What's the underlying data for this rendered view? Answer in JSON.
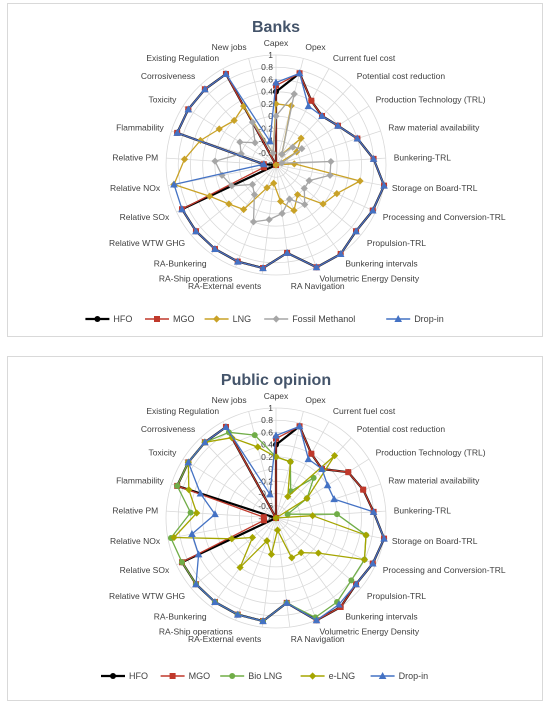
{
  "chart_data": [
    {
      "type": "radar",
      "title": "Banks",
      "rlim": [
        -0.8,
        1
      ],
      "rticks": [
        "-0.8",
        "-0.6",
        "-0.4",
        "-0.2",
        "0",
        "0.2",
        "0.4",
        "0.6",
        "0.8",
        "1"
      ],
      "categories": [
        "Capex",
        "Opex",
        "Current fuel cost",
        "Potential cost reduction",
        "Production Technology (TRL)",
        "Raw material availability",
        "Bunkering-TRL",
        "Storage on Board-TRL",
        "Processing and Conversion-TRL",
        "Propulsion-TRL",
        "Bunkering intervals",
        "Volumetric Energy Density",
        "RA Navigation",
        "RA-External events",
        "RA-Ship operations",
        "RA-Bunkering",
        "Relative WTW GHG",
        "Relative SOx",
        "Relative NOx",
        "Relative PM",
        "Flammability",
        "Toxicity",
        "Corrosiveness",
        "Existing Regulation",
        "New jobs"
      ],
      "legend_position": "bottom",
      "series": [
        {
          "name": "HFO",
          "color": "#000000",
          "marker": "circle",
          "values": [
            0.4,
            0.75,
            0.4,
            0.3,
            0.4,
            0.6,
            0.8,
            1,
            0.95,
            0.9,
            1,
            1,
            0.65,
            0.9,
            0.9,
            0.9,
            0.9,
            0.9,
            -0.8,
            -0.6,
            0.9,
            0.9,
            0.9,
            0.9,
            -0.8
          ]
        },
        {
          "name": "MGO",
          "color": "#c0392b",
          "marker": "square",
          "values": [
            0.5,
            0.75,
            0.4,
            0.3,
            0.4,
            0.6,
            0.8,
            1,
            0.95,
            0.9,
            1,
            1,
            0.65,
            0.9,
            0.9,
            0.9,
            0.9,
            0.9,
            -0.6,
            -0.6,
            0.9,
            0.9,
            0.9,
            0.9,
            -0.8
          ]
        },
        {
          "name": "LNG",
          "color": "#c9a227",
          "marker": "diamond",
          "values": [
            0.2,
            0.2,
            -0.6,
            -0.2,
            -0.4,
            -0.8,
            -0.5,
            0.6,
            0.3,
            0.2,
            -0.2,
            0,
            -0.2,
            -0.5,
            -0.4,
            0.1,
            0.2,
            0.4,
            0.9,
            0.7,
            0.5,
            0.3,
            0.2,
            0.3,
            -0.6
          ]
        },
        {
          "name": "Fossil Methanol",
          "color": "#a6a6a6",
          "marker": "diamond",
          "values": [
            0,
            0.4,
            -0.6,
            -0.4,
            -0.3,
            -0.7,
            0.1,
            0.1,
            -0.2,
            -0.2,
            0,
            -0.2,
            0,
            0.1,
            0.2,
            -0.2,
            -0.3,
            0,
            0.1,
            0.2,
            -0.2,
            -0.1,
            -0.3,
            0,
            -0.6
          ]
        },
        {
          "name": "Drop-in",
          "color": "#4472c4",
          "marker": "triangle",
          "values": [
            0.55,
            0.75,
            0.3,
            0.3,
            0.4,
            0.6,
            0.8,
            1,
            0.95,
            0.9,
            1,
            1,
            0.65,
            0.9,
            0.9,
            0.9,
            0.9,
            0.9,
            0.9,
            -0.6,
            0.9,
            0.9,
            0.9,
            0.9,
            -0.4
          ]
        }
      ]
    },
    {
      "type": "radar",
      "title": "Public opinion",
      "rlim": [
        -0.8,
        1
      ],
      "rticks": [
        "-0.8",
        "-0.6",
        "-0.4",
        "-0.2",
        "0",
        "0.2",
        "0.4",
        "0.6",
        "0.8",
        "1"
      ],
      "categories": [
        "Capex",
        "Opex",
        "Current fuel cost",
        "Potential cost reduction",
        "Production Technology (TRL)",
        "Raw material availability",
        "Bunkering-TRL",
        "Storage on Board-TRL",
        "Processing and Conversion-TRL",
        "Propulsion-TRL",
        "Bunkering intervals",
        "Volumetric Energy Density",
        "RA Navigation",
        "RA-External events",
        "RA-Ship operations",
        "RA-Bunkering",
        "Relative WTW GHG",
        "Relative SOx",
        "Relative NOx",
        "Relative PM",
        "Flammability",
        "Toxicity",
        "Corrosiveness",
        "Existing Regulation",
        "New jobs"
      ],
      "legend_position": "bottom",
      "series": [
        {
          "name": "HFO",
          "color": "#000000",
          "marker": "circle",
          "values": [
            0.4,
            0.75,
            0.4,
            0.3,
            0.6,
            0.7,
            0.8,
            1,
            0.95,
            0.9,
            1,
            1,
            0.6,
            0.9,
            0.9,
            0.9,
            0.9,
            0.9,
            -0.8,
            -0.8,
            0.9,
            0.9,
            0.9,
            0.9,
            -0.8
          ]
        },
        {
          "name": "MGO",
          "color": "#c0392b",
          "marker": "square",
          "values": [
            0.5,
            0.75,
            0.4,
            0.3,
            0.6,
            0.7,
            0.8,
            1,
            0.95,
            0.9,
            1,
            1,
            0.6,
            0.9,
            0.9,
            0.9,
            0.9,
            0.9,
            -0.6,
            -0.6,
            0.9,
            0.9,
            0.9,
            0.9,
            -0.8
          ]
        },
        {
          "name": "Bio LNG",
          "color": "#70ad47",
          "marker": "circle",
          "values": [
            0.2,
            0.15,
            -0.3,
            0.1,
            -0.2,
            -0.6,
            0.2,
            0.7,
            0.8,
            0.8,
            0.9,
            0.95,
            0.6,
            0.9,
            0.9,
            0.9,
            0.9,
            0.9,
            0.95,
            0.6,
            0.9,
            0.9,
            0.9,
            0.8,
            0.6
          ]
        },
        {
          "name": "e-LNG",
          "color": "#a5a500",
          "marker": "diamond",
          "values": [
            0.2,
            0.15,
            -0.4,
            0.6,
            -0.2,
            -0.8,
            -0.2,
            0.7,
            0.8,
            0.1,
            -0.1,
            -0.1,
            -0.6,
            -0.2,
            -0.4,
            0.2,
            -0.3,
            0,
            0.9,
            0.5,
            0.7,
            0.9,
            0.9,
            0.7,
            0.4
          ]
        },
        {
          "name": "Drop-in",
          "color": "#4472c4",
          "marker": "triangle",
          "values": [
            0.55,
            0.75,
            0.3,
            0.3,
            0.2,
            0.2,
            0.8,
            1,
            0.95,
            0.9,
            0.95,
            1,
            0.6,
            0.9,
            0.9,
            0.9,
            0.9,
            0.6,
            0.6,
            0.2,
            0.5,
            0.9,
            0.9,
            0.9,
            -0.4
          ]
        }
      ]
    }
  ]
}
